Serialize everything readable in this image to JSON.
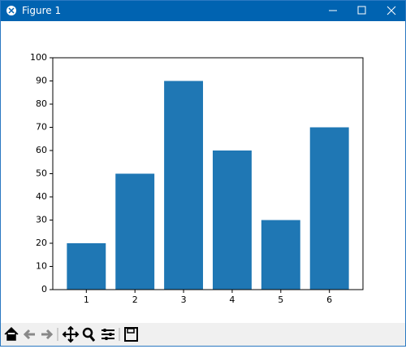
{
  "window": {
    "title": "Figure 1"
  },
  "chart_data": {
    "type": "bar",
    "x": [
      1,
      2,
      3,
      4,
      5,
      6
    ],
    "values": [
      20,
      50,
      90,
      60,
      30,
      70
    ],
    "color": "#1f77b4",
    "xlim": [
      0.31,
      6.69
    ],
    "xticks": [
      1,
      2,
      3,
      4,
      5,
      6
    ],
    "ylim": [
      0,
      100
    ],
    "yticks": [
      0,
      10,
      20,
      30,
      40,
      50,
      60,
      70,
      80,
      90,
      100
    ]
  }
}
